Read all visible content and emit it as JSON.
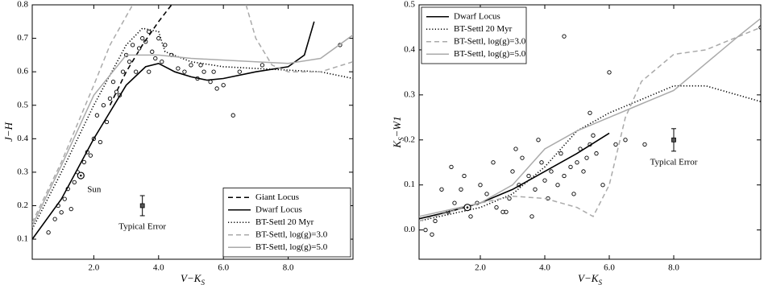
{
  "chart_data": [
    {
      "type": "scatter",
      "x_label": [
        {
          "text": "V−K"
        },
        {
          "text": "S",
          "sub": true
        }
      ],
      "y_label": [
        {
          "text": "J−H"
        }
      ],
      "xlim": [
        0.1,
        10.0
      ],
      "ylim": [
        0.04,
        0.8
      ],
      "xticks": [
        {
          "value": 2,
          "label": "2.0"
        },
        {
          "value": 4,
          "label": "4.0"
        },
        {
          "value": 6,
          "label": "6.0"
        },
        {
          "value": 8,
          "label": "8.0"
        }
      ],
      "yticks": [
        0.1,
        0.2,
        0.3,
        0.4,
        0.5,
        0.6,
        0.7,
        0.8
      ],
      "legend": "lower right",
      "series": [
        {
          "name": "Giant Locus",
          "color": "#000000",
          "dash": "dashed",
          "x": [
            2.5,
            3.0,
            3.5,
            4.0,
            4.4
          ],
          "values": [
            0.5,
            0.6,
            0.68,
            0.75,
            0.8
          ]
        },
        {
          "name": "Dwarf Locus",
          "color": "#000000",
          "dash": "solid",
          "x": [
            0.1,
            1.0,
            2.0,
            3.0,
            3.6,
            4.0,
            4.5,
            5.0,
            5.5,
            6.0,
            7.0,
            8.0,
            8.5,
            8.8
          ],
          "values": [
            0.1,
            0.22,
            0.4,
            0.56,
            0.615,
            0.625,
            0.6,
            0.585,
            0.575,
            0.58,
            0.6,
            0.615,
            0.65,
            0.75
          ]
        },
        {
          "name": "BT-Settl 20 Myr",
          "color": "#000000",
          "dash": "dotted",
          "x": [
            0.1,
            1.0,
            2.0,
            3.0,
            3.5,
            4.0,
            4.2,
            5.0,
            6.0,
            7.0,
            8.0,
            9.0,
            10.0
          ],
          "values": [
            0.13,
            0.3,
            0.5,
            0.68,
            0.73,
            0.72,
            0.66,
            0.63,
            0.615,
            0.61,
            0.605,
            0.6,
            0.58
          ]
        },
        {
          "name": "BT-Settl, log(g)=3.0",
          "color": "#aaaaaa",
          "dash": "dashed",
          "x": [
            0.1,
            1.0,
            2.0,
            2.5,
            3.2,
            5.0,
            6.7,
            7.0,
            7.5,
            8.0,
            9.0,
            10.0
          ],
          "values": [
            0.15,
            0.33,
            0.56,
            0.68,
            0.8,
            null,
            0.8,
            0.7,
            0.62,
            0.6,
            0.6,
            0.63
          ]
        },
        {
          "name": "BT-Settl, log(g)=5.0",
          "color": "#aaaaaa",
          "dash": "solid",
          "x": [
            0.1,
            1.0,
            2.0,
            3.0,
            4.0,
            5.0,
            6.0,
            7.0,
            8.0,
            9.0,
            10.0
          ],
          "values": [
            0.14,
            0.32,
            0.53,
            0.65,
            0.65,
            0.64,
            0.635,
            0.63,
            0.625,
            0.64,
            0.71
          ]
        }
      ],
      "points": {
        "color": "#000000",
        "x": [
          0.6,
          0.8,
          0.9,
          1.0,
          1.1,
          1.2,
          1.3,
          1.4,
          1.5,
          1.7,
          1.8,
          1.9,
          2.0,
          2.1,
          2.2,
          2.3,
          2.4,
          2.5,
          2.6,
          2.7,
          2.8,
          2.9,
          3.0,
          3.1,
          3.2,
          3.3,
          3.4,
          3.5,
          3.6,
          3.7,
          3.8,
          3.9,
          4.0,
          4.2,
          4.4,
          4.6,
          4.8,
          5.0,
          5.2,
          5.4,
          5.6,
          5.8,
          6.0,
          6.3,
          6.5,
          7.2,
          9.6,
          3.7,
          4.1,
          5.3,
          5.7
        ],
        "y": [
          0.12,
          0.16,
          0.2,
          0.18,
          0.22,
          0.25,
          0.19,
          0.27,
          0.3,
          0.33,
          0.36,
          0.35,
          0.4,
          0.47,
          0.39,
          0.5,
          0.45,
          0.52,
          0.57,
          0.54,
          0.53,
          0.6,
          0.65,
          0.63,
          0.68,
          0.6,
          0.67,
          0.7,
          0.69,
          0.72,
          0.66,
          0.64,
          0.7,
          0.68,
          0.65,
          0.61,
          0.6,
          0.62,
          0.58,
          0.6,
          0.57,
          0.55,
          0.56,
          0.47,
          0.6,
          0.62,
          0.68,
          0.6,
          0.63,
          0.62,
          0.6
        ]
      },
      "sun": {
        "label": "Sun",
        "x": 1.6,
        "y": 0.29
      },
      "error_bar": {
        "label": "Typical Error",
        "x": 3.5,
        "value": 0.2,
        "error": 0.03
      }
    },
    {
      "type": "scatter",
      "x_label": [
        {
          "text": "V−K"
        },
        {
          "text": "S",
          "sub": true
        }
      ],
      "y_label": [
        {
          "text": "K"
        },
        {
          "text": "S",
          "sub": true
        },
        {
          "text": "−W1"
        }
      ],
      "xlim": [
        0.1,
        10.7
      ],
      "ylim": [
        -0.065,
        0.5
      ],
      "xticks": [
        {
          "value": 2,
          "label": "2.0"
        },
        {
          "value": 4,
          "label": "4.0"
        },
        {
          "value": 6,
          "label": "6.0"
        },
        {
          "value": 8,
          "label": "8.0"
        }
      ],
      "yticks": [
        {
          "value": 0,
          "label": "0.0"
        },
        0.1,
        0.2,
        0.3,
        0.4,
        0.5
      ],
      "legend": "upper left",
      "series": [
        {
          "name": "Dwarf Locus",
          "color": "#000000",
          "dash": "solid",
          "x": [
            0.1,
            1.0,
            2.0,
            3.0,
            4.0,
            5.0,
            6.0
          ],
          "values": [
            0.025,
            0.04,
            0.06,
            0.09,
            0.13,
            0.17,
            0.215
          ]
        },
        {
          "name": "BT-Settl 20 Myr",
          "color": "#000000",
          "dash": "dotted",
          "x": [
            0.1,
            2.0,
            3.0,
            4.0,
            5.0,
            6.0,
            7.0,
            8.0,
            9.0,
            10.7
          ],
          "values": [
            0.02,
            0.05,
            0.08,
            0.14,
            0.22,
            0.26,
            0.29,
            0.32,
            0.32,
            0.285
          ]
        },
        {
          "name": "BT-Settl, log(g)=3.0",
          "color": "#aaaaaa",
          "dash": "dashed",
          "x": [
            0.1,
            2.0,
            3.0,
            4.0,
            5.0,
            5.5,
            6.0,
            6.5,
            7.0,
            8.0,
            9.0,
            10.7
          ],
          "values": [
            0.02,
            0.06,
            0.075,
            0.07,
            0.05,
            0.03,
            0.1,
            0.25,
            0.33,
            0.39,
            0.4,
            0.45
          ]
        },
        {
          "name": "BT-Settl, log(g)=5.0",
          "color": "#aaaaaa",
          "dash": "solid",
          "x": [
            0.1,
            2.0,
            3.0,
            4.0,
            5.0,
            6.0,
            7.0,
            8.0,
            9.0,
            10.0,
            10.7
          ],
          "values": [
            0.03,
            0.06,
            0.1,
            0.18,
            0.22,
            0.25,
            0.28,
            0.31,
            0.37,
            0.43,
            0.47
          ]
        }
      ],
      "points": {
        "color": "#000000",
        "x": [
          0.3,
          0.5,
          0.6,
          0.8,
          1.0,
          1.1,
          1.2,
          1.4,
          1.5,
          1.7,
          1.9,
          2.0,
          2.2,
          2.4,
          2.5,
          2.7,
          2.9,
          3.0,
          3.1,
          3.2,
          3.3,
          3.5,
          3.6,
          3.7,
          3.9,
          4.0,
          4.1,
          4.2,
          4.4,
          4.5,
          4.6,
          4.8,
          4.9,
          5.0,
          5.1,
          5.2,
          5.3,
          5.4,
          5.5,
          5.6,
          5.8,
          6.0,
          6.2,
          6.5,
          7.1,
          4.6,
          5.4,
          10.7,
          2.8,
          3.8
        ],
        "y": [
          0.0,
          -0.01,
          0.02,
          0.09,
          0.04,
          0.14,
          0.06,
          0.09,
          0.12,
          0.03,
          0.06,
          0.1,
          0.08,
          0.15,
          0.05,
          0.04,
          0.07,
          0.13,
          0.18,
          0.1,
          0.16,
          0.12,
          0.03,
          0.09,
          0.15,
          0.11,
          0.07,
          0.13,
          0.1,
          0.17,
          0.12,
          0.14,
          0.08,
          0.15,
          0.18,
          0.13,
          0.16,
          0.19,
          0.21,
          0.17,
          0.1,
          0.35,
          0.19,
          0.2,
          0.19,
          0.43,
          0.26,
          0.45,
          0.04,
          0.2
        ]
      },
      "sun": {
        "x": 1.6,
        "y": 0.05
      },
      "error_bar": {
        "label": "Typical Error",
        "x": 8.0,
        "value": 0.2,
        "error": 0.025
      }
    }
  ]
}
